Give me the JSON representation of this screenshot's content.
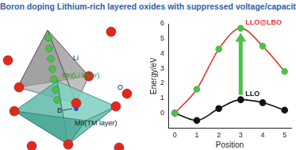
{
  "header": {
    "title": "Boron doping Lithium-rich layered oxides with suppressed voltage/capacity decay"
  },
  "diagram": {
    "labels": [
      "Li",
      "O",
      "Mn(Li layer)",
      "B",
      "Mn(TM layer)"
    ]
  },
  "chart_data": {
    "type": "line",
    "x_label": "Position",
    "y_label": "Energy/eV",
    "x": [
      0,
      1,
      2,
      3,
      4,
      5
    ],
    "series": [
      {
        "name": "LLO@LBO",
        "color": "#e8322b",
        "colors": [
          "#4fc04a",
          "#4fc04a",
          "#4fc04a",
          "#4fc04a",
          "#4fc04a",
          "#4fc04a"
        ],
        "marker": "circle",
        "values": [
          0,
          1.6,
          4.3,
          5.7,
          4.5,
          2.8
        ]
      },
      {
        "name": "LLO",
        "color": "#111111",
        "marker": "circle",
        "values": [
          0,
          -0.5,
          0.3,
          0.9,
          0.7,
          0.2
        ]
      }
    ],
    "xlim": [
      -0.3,
      5.3
    ],
    "xticks": [
      0,
      1,
      2,
      3,
      4,
      5
    ],
    "ylim": [
      -1,
      6
    ],
    "yticks": [
      0,
      1,
      2,
      3,
      4,
      5,
      6
    ],
    "grid": false
  }
}
